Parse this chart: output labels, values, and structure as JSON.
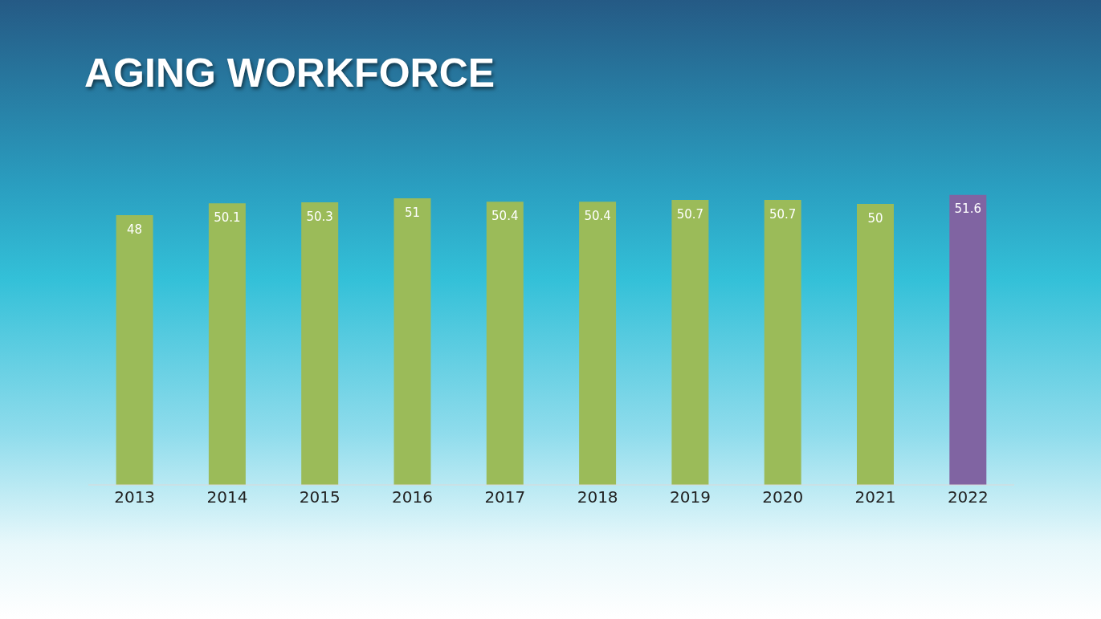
{
  "chart_data": {
    "type": "bar",
    "title": "AGING WORKFORCE",
    "categories": [
      "2013",
      "2014",
      "2015",
      "2016",
      "2017",
      "2018",
      "2019",
      "2020",
      "2021",
      "2022"
    ],
    "values": [
      48,
      50.1,
      50.3,
      51,
      50.4,
      50.4,
      50.7,
      50.7,
      50,
      51.6
    ],
    "colors": [
      "#9bbb59",
      "#9bbb59",
      "#9bbb59",
      "#9bbb59",
      "#9bbb59",
      "#9bbb59",
      "#9bbb59",
      "#9bbb59",
      "#9bbb59",
      "#8064a2"
    ],
    "tick_labels": "x",
    "data_labels": true
  }
}
